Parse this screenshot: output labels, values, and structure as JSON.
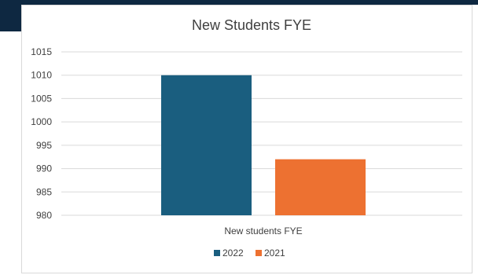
{
  "chart_data": {
    "type": "bar",
    "title": "New Students FYE",
    "categories": [
      "New students FYE"
    ],
    "series": [
      {
        "name": "2022",
        "values": [
          1010
        ],
        "color": "#1a5e7f"
      },
      {
        "name": "2021",
        "values": [
          992
        ],
        "color": "#ed7131"
      }
    ],
    "ylim": [
      980,
      1015
    ],
    "yticks": [
      980,
      985,
      990,
      995,
      1000,
      1005,
      1010,
      1015
    ],
    "grid": true,
    "legend_position": "bottom"
  },
  "colors": {
    "frame": "#0e2841",
    "gridline": "#d9d9d9",
    "text": "#404040"
  }
}
